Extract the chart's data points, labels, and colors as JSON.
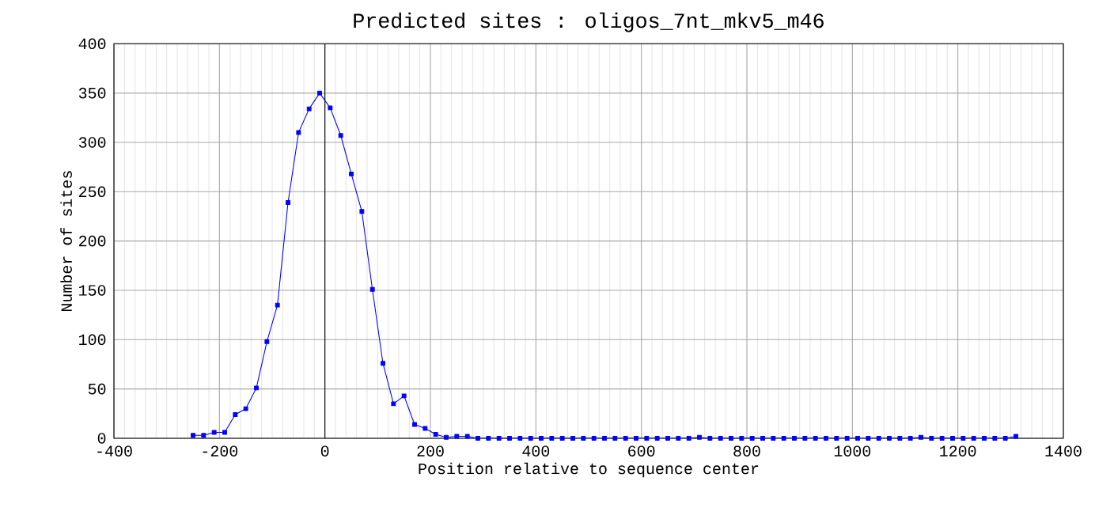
{
  "chart_data": {
    "type": "line",
    "title": "Predicted sites : oligos_7nt_mkv5_m46",
    "xlabel": "Position relative to sequence center",
    "ylabel": "Number of sites",
    "x": [
      -250,
      -230,
      -210,
      -190,
      -170,
      -150,
      -130,
      -110,
      -90,
      -70,
      -50,
      -30,
      -10,
      10,
      30,
      50,
      70,
      90,
      110,
      130,
      150,
      170,
      190,
      210,
      230,
      250,
      270,
      290,
      310,
      330,
      350,
      370,
      390,
      410,
      430,
      450,
      470,
      490,
      510,
      530,
      550,
      570,
      590,
      610,
      630,
      650,
      670,
      690,
      710,
      730,
      750,
      770,
      790,
      810,
      830,
      850,
      870,
      890,
      910,
      930,
      950,
      970,
      990,
      1010,
      1030,
      1050,
      1070,
      1090,
      1110,
      1130,
      1150,
      1170,
      1190,
      1210,
      1230,
      1250,
      1270,
      1290,
      1310
    ],
    "series": [
      {
        "color": "#0000ff",
        "values": [
          3,
          3,
          6,
          6,
          24,
          30,
          51,
          98,
          135,
          239,
          310,
          334,
          350,
          335,
          307,
          268,
          230,
          151,
          76,
          35,
          43,
          14,
          10,
          4,
          1,
          2,
          2,
          0,
          0,
          0,
          0,
          0,
          0,
          0,
          0,
          0,
          0,
          0,
          0,
          0,
          0,
          0,
          0,
          0,
          0,
          0,
          0,
          0,
          1,
          0,
          0,
          0,
          0,
          0,
          0,
          0,
          0,
          0,
          0,
          0,
          0,
          0,
          0,
          0,
          0,
          0,
          0,
          0,
          0,
          1,
          0,
          0,
          0,
          0,
          0,
          0,
          0,
          0,
          2
        ]
      }
    ],
    "xlim": [
      -400,
      1400
    ],
    "xticks": [
      -400,
      -200,
      0,
      200,
      400,
      600,
      800,
      1000,
      1200,
      1400
    ],
    "ylim": [
      0,
      400
    ],
    "yticks": [
      0,
      50,
      100,
      150,
      200,
      250,
      300,
      350,
      400
    ],
    "grid": true,
    "marker": "square",
    "line_style": "solid",
    "ref_lines": [
      {
        "axis": "x",
        "value": 0,
        "color": "#000000"
      }
    ]
  }
}
